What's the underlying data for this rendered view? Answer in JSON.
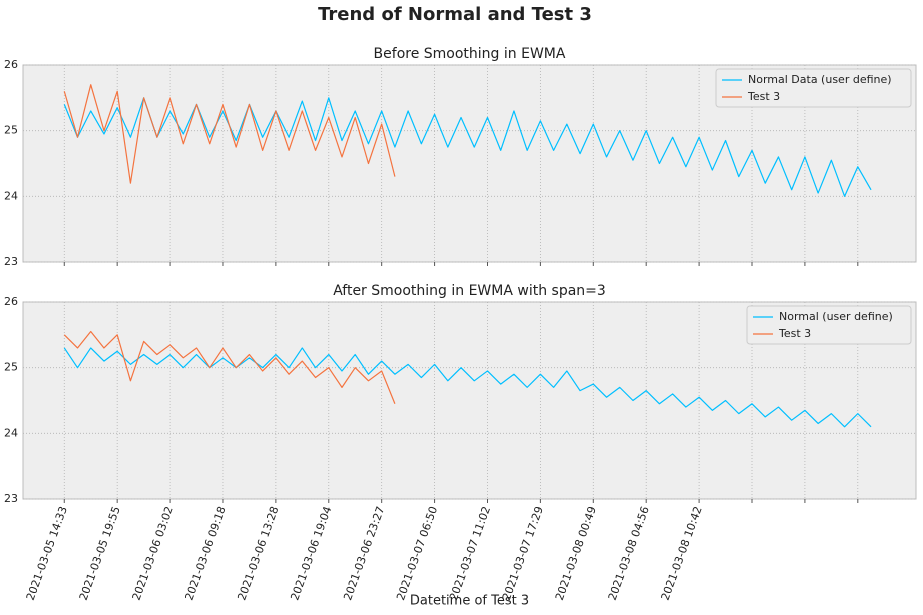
{
  "title": "Trend of Normal and Test 3",
  "chart_data": [
    {
      "type": "line",
      "title": "Before Smoothing in EWMA",
      "xlim": [
        -0.78,
        16.1
      ],
      "ylim": [
        23,
        26
      ],
      "yticks": [
        23,
        24,
        25,
        26
      ],
      "xticks": [
        0,
        1,
        2,
        3,
        4,
        5,
        6,
        7,
        8,
        9,
        10,
        11,
        12,
        13,
        14,
        15
      ],
      "grid": true,
      "legend": "upper right",
      "series": [
        {
          "name": "Normal Data (user define)",
          "color": "#00bfff",
          "x": [
            0,
            0.25,
            0.5,
            0.75,
            1,
            1.25,
            1.5,
            1.75,
            2,
            2.25,
            2.5,
            2.75,
            3,
            3.25,
            3.5,
            3.75,
            4,
            4.25,
            4.5,
            4.75,
            5,
            5.25,
            5.5,
            5.75,
            6,
            6.25,
            6.5,
            6.75,
            7,
            7.25,
            7.5,
            7.75,
            8,
            8.25,
            8.5,
            8.75,
            9,
            9.25,
            9.5,
            9.75,
            10,
            10.25,
            10.5,
            10.75,
            11,
            11.25,
            11.5,
            11.75,
            12,
            12.25,
            12.5,
            12.75,
            13,
            13.25,
            13.5,
            13.75,
            14,
            14.25,
            14.5,
            14.75,
            15,
            15.25
          ],
          "values": [
            25.4,
            24.9,
            25.3,
            24.95,
            25.35,
            24.9,
            25.5,
            24.9,
            25.3,
            24.95,
            25.4,
            24.9,
            25.3,
            24.85,
            25.4,
            24.9,
            25.3,
            24.9,
            25.45,
            24.85,
            25.5,
            24.85,
            25.3,
            24.8,
            25.3,
            24.75,
            25.3,
            24.8,
            25.25,
            24.75,
            25.2,
            24.75,
            25.2,
            24.7,
            25.3,
            24.7,
            25.15,
            24.7,
            25.1,
            24.65,
            25.1,
            24.6,
            25.0,
            24.55,
            25.0,
            24.5,
            24.9,
            24.45,
            24.9,
            24.4,
            24.85,
            24.3,
            24.7,
            24.2,
            24.6,
            24.1,
            24.6,
            24.05,
            24.55,
            24.0,
            24.45,
            24.1
          ]
        },
        {
          "name": "Test 3",
          "color": "#f4733f",
          "x": [
            0,
            0.25,
            0.5,
            0.75,
            1,
            1.25,
            1.5,
            1.75,
            2,
            2.25,
            2.5,
            2.75,
            3,
            3.25,
            3.5,
            3.75,
            4,
            4.25,
            4.5,
            4.75,
            5,
            5.25,
            5.5,
            5.75,
            6,
            6.25
          ],
          "values": [
            25.6,
            24.9,
            25.7,
            25.0,
            25.6,
            24.2,
            25.5,
            24.9,
            25.5,
            24.8,
            25.4,
            24.8,
            25.4,
            24.75,
            25.4,
            24.7,
            25.3,
            24.7,
            25.3,
            24.7,
            25.2,
            24.6,
            25.2,
            24.5,
            25.1,
            24.3
          ]
        }
      ]
    },
    {
      "type": "line",
      "title": "After Smoothing in EWMA with span=3",
      "xlabel": "Datetime of Test 3",
      "xlim": [
        -0.78,
        16.1
      ],
      "ylim": [
        23,
        26
      ],
      "yticks": [
        23,
        24,
        25,
        26
      ],
      "xticks": [
        {
          "value": 0,
          "label": "2021-03-05 14:33"
        },
        {
          "value": 1,
          "label": "2021-03-05 19:55"
        },
        {
          "value": 2,
          "label": "2021-03-06 03:02"
        },
        {
          "value": 3,
          "label": "2021-03-06 09:18"
        },
        {
          "value": 4,
          "label": "2021-03-06 13:28"
        },
        {
          "value": 5,
          "label": "2021-03-06 19:04"
        },
        {
          "value": 6,
          "label": "2021-03-06 23:27"
        },
        {
          "value": 7,
          "label": "2021-03-07 06:50"
        },
        {
          "value": 8,
          "label": "2021-03-07 11:02"
        },
        {
          "value": 9,
          "label": "2021-03-07 17:29"
        },
        {
          "value": 10,
          "label": "2021-03-08 00:49"
        },
        {
          "value": 11,
          "label": "2021-03-08 04:56"
        },
        {
          "value": 12,
          "label": "2021-03-08 10:42"
        },
        {
          "value": 13,
          "label": null
        },
        {
          "value": 14,
          "label": null
        },
        {
          "value": 15,
          "label": null
        }
      ],
      "grid": true,
      "legend": "upper right",
      "series": [
        {
          "name": "Normal (user define)",
          "color": "#00bfff",
          "x": [
            0,
            0.25,
            0.5,
            0.75,
            1,
            1.25,
            1.5,
            1.75,
            2,
            2.25,
            2.5,
            2.75,
            3,
            3.25,
            3.5,
            3.75,
            4,
            4.25,
            4.5,
            4.75,
            5,
            5.25,
            5.5,
            5.75,
            6,
            6.25,
            6.5,
            6.75,
            7,
            7.25,
            7.5,
            7.75,
            8,
            8.25,
            8.5,
            8.75,
            9,
            9.25,
            9.5,
            9.75,
            10,
            10.25,
            10.5,
            10.75,
            11,
            11.25,
            11.5,
            11.75,
            12,
            12.25,
            12.5,
            12.75,
            13,
            13.25,
            13.5,
            13.75,
            14,
            14.25,
            14.5,
            14.75,
            15,
            15.25
          ],
          "values": [
            25.3,
            25.0,
            25.3,
            25.1,
            25.25,
            25.05,
            25.2,
            25.05,
            25.2,
            25.0,
            25.2,
            25.0,
            25.15,
            25.0,
            25.15,
            25.0,
            25.2,
            25.0,
            25.3,
            25.0,
            25.2,
            24.95,
            25.2,
            24.9,
            25.1,
            24.9,
            25.05,
            24.85,
            25.05,
            24.8,
            25.0,
            24.8,
            24.95,
            24.75,
            24.9,
            24.7,
            24.9,
            24.7,
            24.95,
            24.65,
            24.75,
            24.55,
            24.7,
            24.5,
            24.65,
            24.45,
            24.6,
            24.4,
            24.55,
            24.35,
            24.5,
            24.3,
            24.45,
            24.25,
            24.4,
            24.2,
            24.35,
            24.15,
            24.3,
            24.1,
            24.3,
            24.1
          ]
        },
        {
          "name": "Test 3",
          "color": "#f4733f",
          "x": [
            0,
            0.25,
            0.5,
            0.75,
            1,
            1.25,
            1.5,
            1.75,
            2,
            2.25,
            2.5,
            2.75,
            3,
            3.25,
            3.5,
            3.75,
            4,
            4.25,
            4.5,
            4.75,
            5,
            5.25,
            5.5,
            5.75,
            6,
            6.25
          ],
          "values": [
            25.5,
            25.3,
            25.55,
            25.3,
            25.5,
            24.8,
            25.4,
            25.2,
            25.35,
            25.15,
            25.3,
            25.0,
            25.3,
            25.0,
            25.2,
            24.95,
            25.15,
            24.9,
            25.1,
            24.85,
            25.0,
            24.7,
            25.0,
            24.8,
            24.95,
            24.45
          ]
        }
      ]
    }
  ]
}
